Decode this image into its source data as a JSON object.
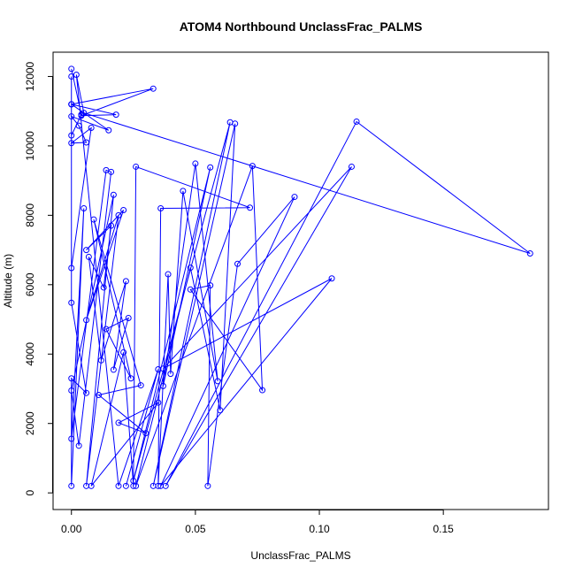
{
  "chart_data": {
    "type": "line",
    "title": "ATOM4 Northbound UnclassFrac_PALMS",
    "xlabel": "UnclassFrac_PALMS",
    "ylabel": "Altitude (m)",
    "xlim": [
      -0.0074,
      0.1924
    ],
    "ylim": [
      -480,
      12700
    ],
    "x_ticks": [
      0.0,
      0.05,
      0.1,
      0.15
    ],
    "x_tick_labels": [
      "0.00",
      "0.05",
      "0.10",
      "0.15"
    ],
    "y_ticks": [
      0,
      2000,
      4000,
      6000,
      8000,
      10000,
      12000
    ],
    "y_tick_labels": [
      "0",
      "2000",
      "4000",
      "6000",
      "8000",
      "10000",
      "12000"
    ],
    "grid": false,
    "line_color": "#0000ff",
    "marker": "open-circle",
    "series": [
      {
        "values": [
          [
            0.0,
            12220
          ],
          [
            0.004,
            10900
          ],
          [
            0.0,
            10300
          ],
          [
            0.0,
            12000
          ],
          [
            0.0,
            11200
          ],
          [
            0.033,
            11650
          ],
          [
            0.004,
            10870
          ],
          [
            0.018,
            10900
          ],
          [
            0.0,
            11200
          ],
          [
            0.015,
            10450
          ],
          [
            0.0,
            10850
          ],
          [
            0.003,
            10580
          ],
          [
            0.006,
            10100
          ],
          [
            0.0,
            10080
          ],
          [
            0.008,
            10520
          ],
          [
            0.0,
            6480
          ],
          [
            0.0,
            11200
          ],
          [
            0.0,
            5480
          ],
          [
            0.006,
            2880
          ],
          [
            0.0,
            3300
          ],
          [
            0.0,
            200
          ],
          [
            0.005,
            8200
          ],
          [
            0.0,
            1560
          ],
          [
            0.014,
            9300
          ],
          [
            0.016,
            9250
          ],
          [
            0.003,
            1360
          ],
          [
            0.0,
            2950
          ],
          [
            0.017,
            8590
          ],
          [
            0.006,
            200
          ],
          [
            0.019,
            8000
          ],
          [
            0.006,
            4980
          ],
          [
            0.021,
            8150
          ],
          [
            0.006,
            7000
          ],
          [
            0.016,
            7700
          ],
          [
            0.013,
            5920
          ],
          [
            0.007,
            6800
          ],
          [
            0.012,
            3820
          ],
          [
            0.022,
            6100
          ],
          [
            0.017,
            3550
          ],
          [
            0.023,
            5040
          ],
          [
            0.014,
            4720
          ],
          [
            0.024,
            3300
          ],
          [
            0.009,
            7880
          ],
          [
            0.028,
            3100
          ],
          [
            0.011,
            2820
          ],
          [
            0.03,
            1720
          ],
          [
            0.019,
            2020
          ],
          [
            0.035,
            2600
          ],
          [
            0.008,
            200
          ],
          [
            0.021,
            4050
          ],
          [
            0.025,
            200
          ],
          [
            0.026,
            9400
          ],
          [
            0.072,
            8220
          ],
          [
            0.036,
            8200
          ],
          [
            0.035,
            200
          ],
          [
            0.039,
            6300
          ],
          [
            0.04,
            3430
          ],
          [
            0.045,
            8700
          ],
          [
            0.059,
            3220
          ],
          [
            0.05,
            9490
          ],
          [
            0.037,
            3080
          ],
          [
            0.056,
            9380
          ],
          [
            0.025,
            350
          ],
          [
            0.064,
            10680
          ],
          [
            0.033,
            200
          ],
          [
            0.066,
            10640
          ],
          [
            0.06,
            2380
          ],
          [
            0.048,
            6490
          ],
          [
            0.026,
            200
          ],
          [
            0.073,
            9420
          ],
          [
            0.077,
            2960
          ],
          [
            0.048,
            5860
          ],
          [
            0.056,
            5980
          ],
          [
            0.055,
            200
          ],
          [
            0.067,
            6600
          ],
          [
            0.09,
            8530
          ],
          [
            0.036,
            200
          ],
          [
            0.105,
            6180
          ],
          [
            0.037,
            3580
          ],
          [
            0.113,
            9400
          ],
          [
            0.038,
            200
          ],
          [
            0.115,
            10700
          ],
          [
            0.185,
            6900
          ],
          [
            0.005,
            10950
          ],
          [
            0.002,
            12050
          ],
          [
            0.019,
            200
          ],
          [
            0.035,
            3560
          ],
          [
            0.022,
            200
          ]
        ]
      }
    ]
  }
}
